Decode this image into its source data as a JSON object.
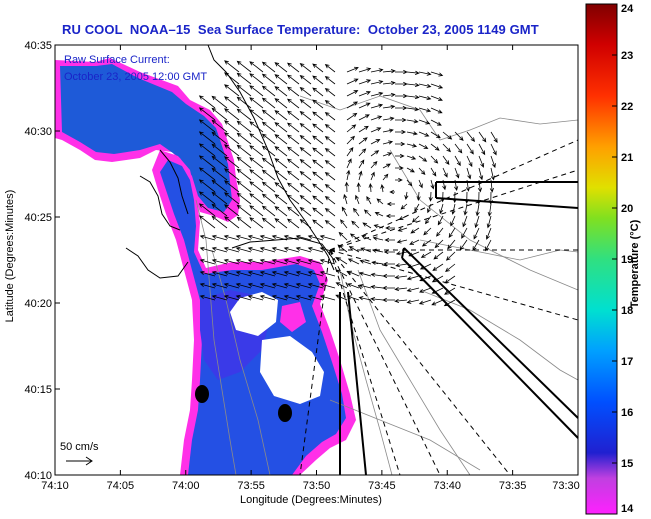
{
  "title": "RU COOL  NOAA–15  Sea Surface Temperature:  October 23, 2005 1149 GMT",
  "current_label_1": "Raw Surface Current:",
  "current_label_2": "October 23, 2005 12:00 GMT",
  "scale_label": "50 cm/s",
  "x_axis_label": "Longitude (Degrees:Minutes)",
  "y_axis_label": "Latitude (Degrees:Minutes)",
  "colorbar_label": "Temperature (°C)",
  "x_ticks": [
    "74:10",
    "74:05",
    "74:00",
    "73:55",
    "73:50",
    "73:45",
    "73:40",
    "73:35",
    "73:30"
  ],
  "y_ticks": [
    "40:35",
    "40:30",
    "40:25",
    "40:20",
    "40:15",
    "40:10"
  ],
  "colorbar_ticks": [
    "24",
    "23",
    "22",
    "21",
    "20",
    "19",
    "18",
    "17",
    "16",
    "15",
    "14"
  ],
  "colorbar_range": [
    14,
    24
  ],
  "colors": {
    "title": "#1a24c8",
    "water_deep": "#1e5ad8",
    "water_cold": "#2840e0",
    "edge": "#ff30e8",
    "land": "#ffffff"
  }
}
